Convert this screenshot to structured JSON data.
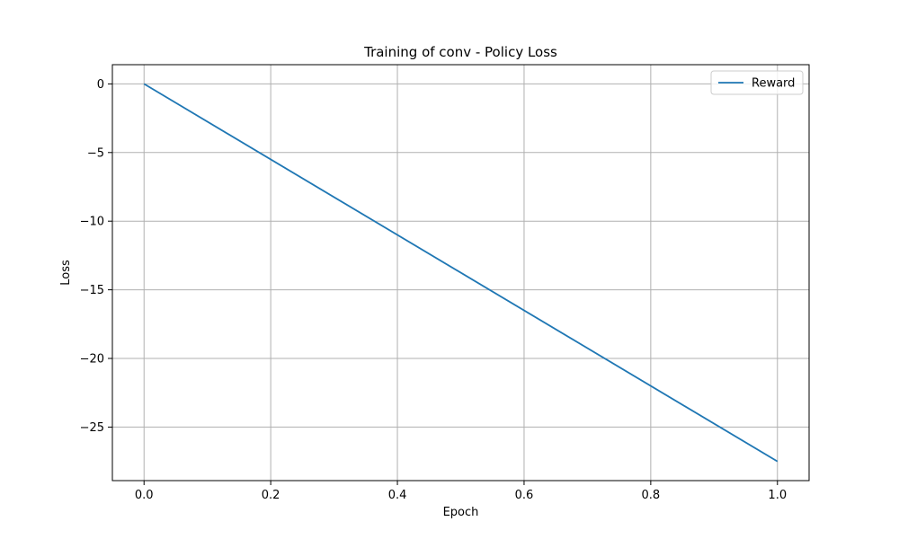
{
  "chart_data": {
    "type": "line",
    "title": "Training of conv - Policy Loss",
    "xlabel": "Epoch",
    "ylabel": "Loss",
    "xlim": [
      -0.05,
      1.05
    ],
    "ylim": [
      -28.9,
      1.4
    ],
    "xticks": [
      0.0,
      0.2,
      0.4,
      0.6,
      0.8,
      1.0
    ],
    "xtick_labels": [
      "0.0",
      "0.2",
      "0.4",
      "0.6",
      "0.8",
      "1.0"
    ],
    "yticks": [
      0,
      -5,
      -10,
      -15,
      -20,
      -25
    ],
    "ytick_labels": [
      "0",
      "−5",
      "−10",
      "−15",
      "−20",
      "−25"
    ],
    "grid": true,
    "legend": "top-right",
    "series": [
      {
        "name": "Reward",
        "color": "#1f77b4",
        "x": [
          0.0,
          1.0
        ],
        "y": [
          0.0,
          -27.5
        ]
      }
    ]
  }
}
